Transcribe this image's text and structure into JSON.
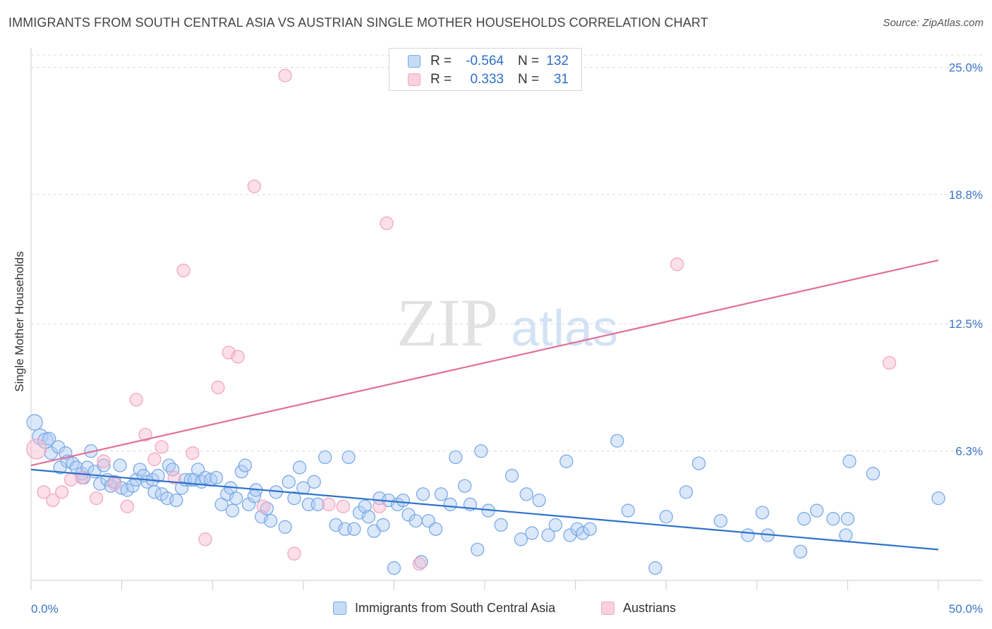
{
  "title": "IMMIGRANTS FROM SOUTH CENTRAL ASIA VS AUSTRIAN SINGLE MOTHER HOUSEHOLDS CORRELATION CHART",
  "source": "Source: ZipAtlas.com",
  "watermark": {
    "zip": "ZIP",
    "atlas": "atlas"
  },
  "legend": {
    "r_label": "R =",
    "n_label": "N =",
    "rows": [
      {
        "r": "-0.564",
        "n": "132"
      },
      {
        "r": "0.333",
        "n": "31"
      }
    ]
  },
  "chart_data": {
    "type": "scatter",
    "title": "IMMIGRANTS FROM SOUTH CENTRAL ASIA VS AUSTRIAN SINGLE MOTHER HOUSEHOLDS CORRELATION CHART",
    "xlabel": "",
    "ylabel": "Single Mother Households",
    "xlim": [
      0,
      50
    ],
    "ylim": [
      0,
      25.6
    ],
    "x_tick_labels": [
      "0.0%",
      "50.0%"
    ],
    "y_ticks": [
      6.3,
      12.5,
      18.8,
      25.0
    ],
    "y_tick_labels": [
      "6.3%",
      "12.5%",
      "18.8%",
      "25.0%"
    ],
    "grid": "horizontal dashed",
    "legend_position": "top-center",
    "series": [
      {
        "name": "Immigrants from South Central Asia",
        "color": "#7aaae8",
        "line_color": "#2f72cc",
        "r": -0.564,
        "n": 132,
        "trend": [
          [
            0,
            5.4
          ],
          [
            50,
            1.5
          ]
        ],
        "points": [
          [
            0.2,
            7.7
          ],
          [
            0.5,
            7.0
          ],
          [
            0.8,
            6.8
          ],
          [
            1.0,
            6.9
          ],
          [
            1.1,
            6.2
          ],
          [
            1.5,
            6.5
          ],
          [
            1.6,
            5.5
          ],
          [
            1.9,
            6.2
          ],
          [
            2.0,
            5.8
          ],
          [
            2.3,
            5.7
          ],
          [
            2.5,
            5.5
          ],
          [
            2.8,
            5.2
          ],
          [
            2.9,
            5.0
          ],
          [
            3.1,
            5.5
          ],
          [
            3.3,
            6.3
          ],
          [
            3.5,
            5.3
          ],
          [
            3.8,
            4.7
          ],
          [
            4.0,
            5.6
          ],
          [
            4.2,
            4.9
          ],
          [
            4.4,
            4.6
          ],
          [
            4.6,
            4.8
          ],
          [
            4.9,
            5.6
          ],
          [
            5.0,
            4.5
          ],
          [
            5.3,
            4.4
          ],
          [
            5.6,
            4.6
          ],
          [
            5.8,
            4.9
          ],
          [
            6.0,
            5.4
          ],
          [
            6.2,
            5.1
          ],
          [
            6.4,
            4.8
          ],
          [
            6.7,
            4.9
          ],
          [
            6.8,
            4.3
          ],
          [
            7.0,
            5.1
          ],
          [
            7.2,
            4.2
          ],
          [
            7.5,
            4.0
          ],
          [
            7.6,
            5.6
          ],
          [
            7.8,
            5.4
          ],
          [
            8.0,
            3.9
          ],
          [
            8.3,
            4.5
          ],
          [
            8.5,
            4.9
          ],
          [
            8.8,
            4.9
          ],
          [
            9.0,
            4.9
          ],
          [
            9.2,
            5.4
          ],
          [
            9.4,
            4.8
          ],
          [
            9.6,
            5.0
          ],
          [
            9.9,
            4.9
          ],
          [
            10.2,
            5.0
          ],
          [
            10.5,
            3.7
          ],
          [
            10.8,
            4.2
          ],
          [
            11.0,
            4.5
          ],
          [
            11.1,
            3.4
          ],
          [
            11.3,
            4.0
          ],
          [
            11.6,
            5.3
          ],
          [
            11.8,
            5.6
          ],
          [
            12.0,
            3.7
          ],
          [
            12.3,
            4.1
          ],
          [
            12.4,
            4.4
          ],
          [
            12.7,
            3.1
          ],
          [
            13.0,
            3.5
          ],
          [
            13.2,
            2.9
          ],
          [
            13.5,
            4.3
          ],
          [
            14.0,
            2.6
          ],
          [
            14.2,
            4.8
          ],
          [
            14.5,
            4.0
          ],
          [
            14.8,
            5.5
          ],
          [
            15.0,
            4.5
          ],
          [
            15.3,
            3.7
          ],
          [
            15.6,
            4.8
          ],
          [
            15.8,
            3.7
          ],
          [
            16.2,
            6.0
          ],
          [
            16.8,
            2.7
          ],
          [
            17.3,
            2.5
          ],
          [
            17.5,
            6.0
          ],
          [
            17.8,
            2.5
          ],
          [
            18.1,
            3.3
          ],
          [
            18.4,
            3.6
          ],
          [
            18.6,
            3.1
          ],
          [
            18.9,
            2.4
          ],
          [
            19.2,
            4.0
          ],
          [
            19.4,
            2.7
          ],
          [
            19.7,
            3.9
          ],
          [
            20.0,
            0.6
          ],
          [
            20.2,
            3.7
          ],
          [
            20.5,
            3.9
          ],
          [
            20.8,
            3.2
          ],
          [
            21.2,
            2.9
          ],
          [
            21.5,
            0.9
          ],
          [
            21.6,
            4.2
          ],
          [
            21.9,
            2.9
          ],
          [
            22.3,
            2.5
          ],
          [
            22.6,
            4.2
          ],
          [
            23.1,
            3.7
          ],
          [
            23.4,
            6.0
          ],
          [
            23.9,
            4.6
          ],
          [
            24.2,
            3.7
          ],
          [
            24.6,
            1.5
          ],
          [
            24.8,
            6.3
          ],
          [
            25.2,
            3.4
          ],
          [
            25.9,
            2.7
          ],
          [
            26.5,
            5.1
          ],
          [
            27.0,
            2.0
          ],
          [
            27.3,
            4.2
          ],
          [
            27.6,
            2.3
          ],
          [
            28.0,
            3.9
          ],
          [
            28.5,
            2.2
          ],
          [
            28.9,
            2.7
          ],
          [
            29.5,
            5.8
          ],
          [
            29.7,
            2.2
          ],
          [
            30.1,
            2.5
          ],
          [
            30.4,
            2.3
          ],
          [
            30.8,
            2.5
          ],
          [
            32.3,
            6.8
          ],
          [
            32.9,
            3.4
          ],
          [
            34.4,
            0.6
          ],
          [
            35.0,
            3.1
          ],
          [
            36.1,
            4.3
          ],
          [
            36.8,
            5.7
          ],
          [
            38.0,
            2.9
          ],
          [
            39.5,
            2.2
          ],
          [
            40.3,
            3.3
          ],
          [
            40.6,
            2.2
          ],
          [
            42.4,
            1.4
          ],
          [
            42.6,
            3.0
          ],
          [
            43.3,
            3.4
          ],
          [
            44.2,
            3.0
          ],
          [
            44.9,
            2.2
          ],
          [
            45.0,
            3.0
          ],
          [
            45.1,
            5.8
          ],
          [
            46.4,
            5.2
          ],
          [
            50.0,
            4.0
          ]
        ]
      },
      {
        "name": "Austrians",
        "color": "#f3a7c0",
        "line_color": "#e0709a",
        "r": 0.333,
        "n": 31,
        "trend": [
          [
            0,
            5.6
          ],
          [
            50,
            15.6
          ]
        ],
        "points": [
          [
            0.3,
            6.4
          ],
          [
            0.7,
            4.3
          ],
          [
            1.2,
            3.9
          ],
          [
            1.7,
            4.3
          ],
          [
            2.2,
            4.9
          ],
          [
            2.8,
            5.0
          ],
          [
            3.6,
            4.0
          ],
          [
            4.0,
            5.8
          ],
          [
            4.6,
            4.7
          ],
          [
            5.3,
            3.6
          ],
          [
            5.8,
            8.8
          ],
          [
            6.3,
            7.1
          ],
          [
            6.8,
            5.9
          ],
          [
            7.2,
            6.5
          ],
          [
            7.9,
            5.0
          ],
          [
            8.4,
            15.1
          ],
          [
            8.9,
            6.2
          ],
          [
            9.6,
            2.0
          ],
          [
            10.3,
            9.4
          ],
          [
            10.9,
            11.1
          ],
          [
            11.4,
            10.9
          ],
          [
            12.3,
            19.2
          ],
          [
            12.8,
            3.6
          ],
          [
            14.0,
            24.6
          ],
          [
            14.5,
            1.3
          ],
          [
            16.4,
            3.7
          ],
          [
            17.2,
            3.6
          ],
          [
            19.2,
            3.6
          ],
          [
            19.6,
            17.4
          ],
          [
            21.4,
            0.8
          ],
          [
            35.6,
            15.4
          ],
          [
            47.3,
            10.6
          ]
        ]
      }
    ]
  }
}
